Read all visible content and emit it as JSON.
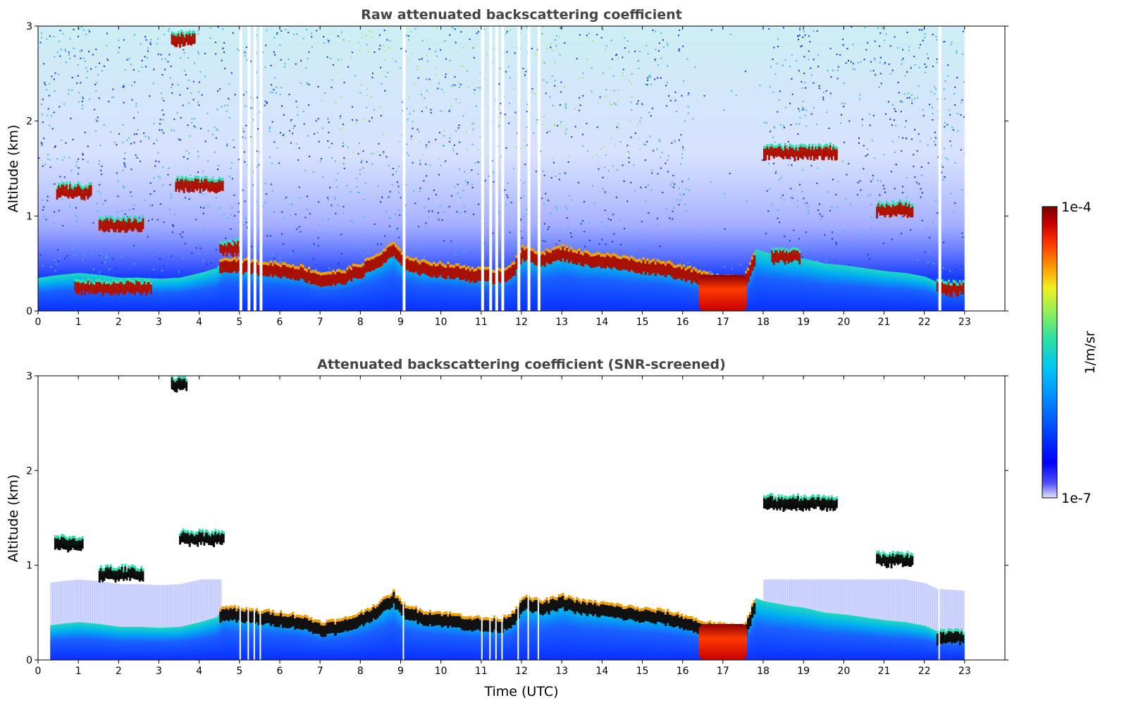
{
  "chart_data": [
    {
      "type": "heatmap",
      "title": "Raw attenuated backscattering coefficient",
      "xlabel": "",
      "ylabel": "Altitude (km)",
      "xlim": [
        0,
        24
      ],
      "ylim": [
        0,
        3
      ],
      "xticks": [
        0,
        1,
        2,
        3,
        4,
        5,
        6,
        7,
        8,
        9,
        10,
        11,
        12,
        13,
        14,
        15,
        16,
        17,
        18,
        19,
        20,
        21,
        22,
        23
      ],
      "yticks": [
        0,
        1,
        2,
        3
      ],
      "data_end_hour": 23,
      "boundary_layer_km": [
        [
          0.0,
          0.35
        ],
        [
          0.5,
          0.38
        ],
        [
          1.0,
          0.4
        ],
        [
          1.5,
          0.38
        ],
        [
          2.0,
          0.35
        ],
        [
          2.5,
          0.35
        ],
        [
          3.0,
          0.34
        ],
        [
          3.5,
          0.35
        ],
        [
          4.0,
          0.4
        ],
        [
          4.4,
          0.45
        ],
        [
          4.6,
          0.55
        ],
        [
          5.0,
          0.52
        ],
        [
          5.5,
          0.5
        ],
        [
          6.0,
          0.48
        ],
        [
          6.5,
          0.45
        ],
        [
          7.0,
          0.38
        ],
        [
          7.5,
          0.4
        ],
        [
          8.0,
          0.48
        ],
        [
          8.5,
          0.6
        ],
        [
          8.8,
          0.7
        ],
        [
          9.0,
          0.58
        ],
        [
          9.5,
          0.5
        ],
        [
          10.0,
          0.48
        ],
        [
          10.5,
          0.45
        ],
        [
          11.0,
          0.42
        ],
        [
          11.5,
          0.42
        ],
        [
          11.8,
          0.5
        ],
        [
          12.0,
          0.65
        ],
        [
          12.5,
          0.6
        ],
        [
          13.0,
          0.66
        ],
        [
          13.5,
          0.6
        ],
        [
          14.0,
          0.58
        ],
        [
          14.5,
          0.55
        ],
        [
          15.0,
          0.52
        ],
        [
          15.5,
          0.5
        ],
        [
          16.0,
          0.45
        ],
        [
          16.5,
          0.38
        ],
        [
          17.0,
          0.35
        ],
        [
          17.5,
          0.34
        ],
        [
          17.8,
          0.65
        ],
        [
          18.0,
          0.62
        ],
        [
          18.5,
          0.58
        ],
        [
          19.0,
          0.55
        ],
        [
          19.5,
          0.5
        ],
        [
          20.0,
          0.48
        ],
        [
          20.5,
          0.45
        ],
        [
          21.0,
          0.42
        ],
        [
          21.5,
          0.4
        ],
        [
          22.0,
          0.36
        ],
        [
          22.3,
          0.3
        ],
        [
          23.0,
          0.28
        ]
      ],
      "cloud_segments_km": [
        {
          "x0": 0.45,
          "x1": 1.3,
          "y": 1.25
        },
        {
          "x0": 1.5,
          "x1": 2.6,
          "y": 0.9
        },
        {
          "x0": 3.4,
          "x1": 4.6,
          "y": 1.32
        },
        {
          "x0": 3.3,
          "x1": 3.9,
          "y": 2.85
        },
        {
          "x0": 4.5,
          "x1": 5.0,
          "y": 0.65
        },
        {
          "x0": 16.4,
          "x1": 17.6,
          "y": 0.15
        },
        {
          "x0": 18.0,
          "x1": 19.8,
          "y": 1.66
        },
        {
          "x0": 20.8,
          "x1": 21.7,
          "y": 1.06
        },
        {
          "x0": 18.2,
          "x1": 18.9,
          "y": 0.57
        },
        {
          "x0": 22.3,
          "x1": 22.95,
          "y": 0.23
        },
        {
          "x0": 0.9,
          "x1": 2.8,
          "y": 0.24
        }
      ]
    },
    {
      "type": "heatmap",
      "title": "Attenuated backscattering coefficient (SNR-screened)",
      "xlabel": "Time (UTC)",
      "ylabel": "Altitude (km)",
      "xlim": [
        0,
        24
      ],
      "ylim": [
        0,
        3
      ],
      "xticks": [
        0,
        1,
        2,
        3,
        4,
        5,
        6,
        7,
        8,
        9,
        10,
        11,
        12,
        13,
        14,
        15,
        16,
        17,
        18,
        19,
        20,
        21,
        22,
        23
      ],
      "yticks": [
        0,
        1,
        2,
        3
      ],
      "data_end_hour": 23,
      "cloud_segments_km": [
        {
          "x0": 0.4,
          "x1": 1.1,
          "y": 1.22
        },
        {
          "x0": 1.5,
          "x1": 2.6,
          "y": 0.9
        },
        {
          "x0": 3.5,
          "x1": 4.6,
          "y": 1.28
        },
        {
          "x0": 3.3,
          "x1": 3.7,
          "y": 2.9
        },
        {
          "x0": 18.0,
          "x1": 19.8,
          "y": 1.65
        },
        {
          "x0": 20.8,
          "x1": 21.7,
          "y": 1.05
        },
        {
          "x0": 16.4,
          "x1": 17.6,
          "y": 0.15
        },
        {
          "x0": 22.3,
          "x1": 22.95,
          "y": 0.23
        }
      ]
    }
  ],
  "colorbar": {
    "max_label": "1e-4",
    "min_label": "1e-7",
    "unit_label": "1/m/sr",
    "colors": [
      "#e6e6f8",
      "#0000ff",
      "#00bfff",
      "#2fe0a0",
      "#f0f020",
      "#ff8000",
      "#dd1a00",
      "#7a0000"
    ]
  }
}
